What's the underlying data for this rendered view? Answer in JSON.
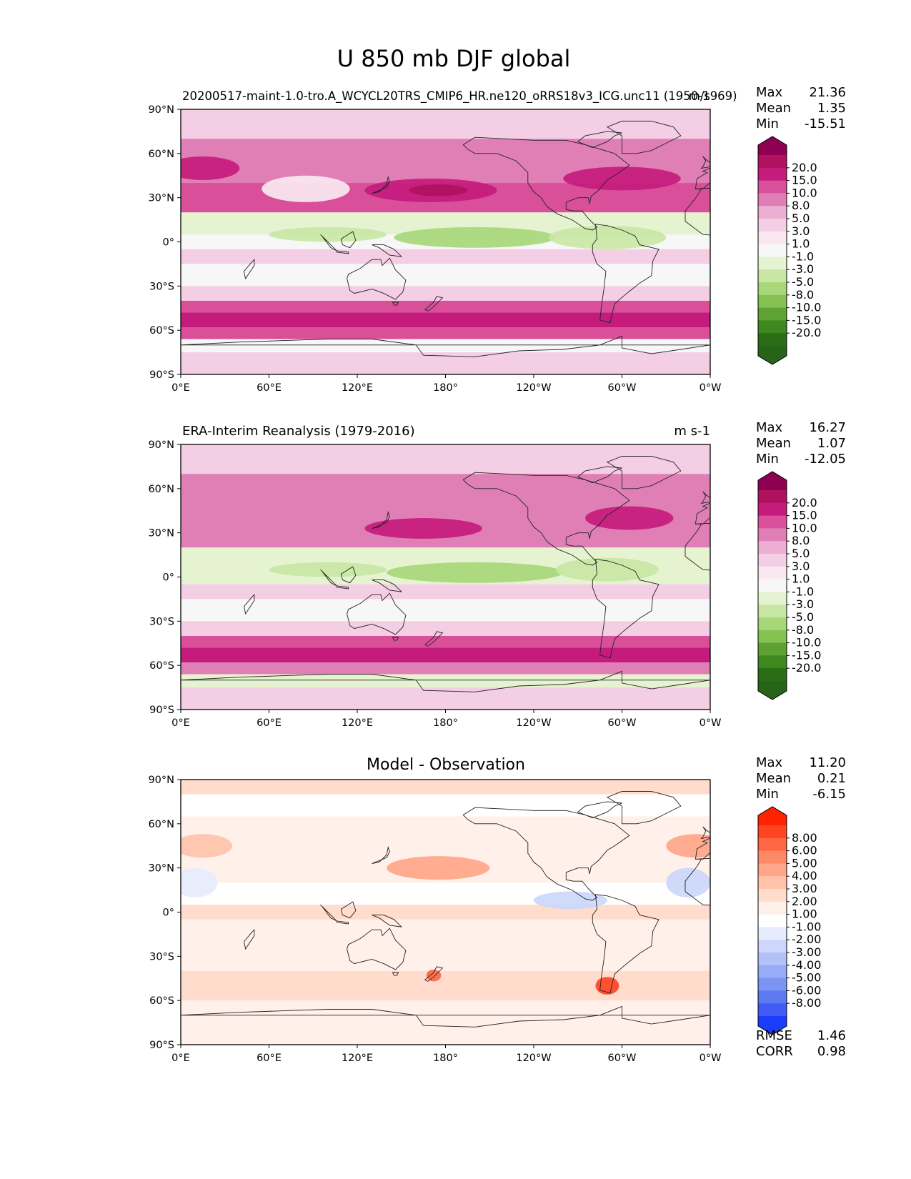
{
  "figure": {
    "title": "U 850 mb DJF global"
  },
  "axes": {
    "lat_ticks": [
      "90°N",
      "60°N",
      "30°N",
      "0°",
      "30°S",
      "60°S",
      "90°S"
    ],
    "lon_ticks": [
      "0°E",
      "60°E",
      "120°E",
      "180°",
      "120°W",
      "60°W",
      "0°W"
    ]
  },
  "panels": [
    {
      "id": "model",
      "title_left": "20200517-maint-1.0-tro.A_WCYCL20TRS_CMIP6_HR.ne120_oRRS18v3_ICG.unc11 (1950-1969)",
      "title_right": "m/s",
      "title_center": "",
      "stats": {
        "max_label": "Max",
        "max": "21.36",
        "mean_label": "Mean",
        "mean": "1.35",
        "min_label": "Min",
        "min": "-15.51"
      },
      "colorbar": {
        "labels": [
          "20.0",
          "15.0",
          "10.0",
          "8.0",
          "5.0",
          "3.0",
          "1.0",
          "-1.0",
          "-3.0",
          "-5.0",
          "-8.0",
          "-10.0",
          "-15.0",
          "-20.0"
        ],
        "colors": [
          "#8e0152",
          "#b0125e",
          "#c51b7d",
          "#d94f9a",
          "#e07fb6",
          "#ecaed2",
          "#f4cee4",
          "#fae8f1",
          "#f7f7f7",
          "#e6f3d1",
          "#c9e7a4",
          "#a8d77a",
          "#85c252",
          "#5fa234",
          "#3f8820",
          "#2a6d16",
          "#276419"
        ]
      },
      "bands": [
        {
          "lat_n": 90,
          "lat_s": 70,
          "value": 1
        },
        {
          "lat_n": 70,
          "lat_s": 40,
          "value": 6
        },
        {
          "lat_n": 40,
          "lat_s": 20,
          "value": 8
        },
        {
          "lat_n": 20,
          "lat_s": 5,
          "value": -5
        },
        {
          "lat_n": 5,
          "lat_s": -5,
          "value": -3
        },
        {
          "lat_n": -5,
          "lat_s": -15,
          "value": 1
        },
        {
          "lat_n": -15,
          "lat_s": -30,
          "value": -3
        },
        {
          "lat_n": -30,
          "lat_s": -40,
          "value": 1
        },
        {
          "lat_n": -40,
          "lat_s": -48,
          "value": 9
        },
        {
          "lat_n": -48,
          "lat_s": -58,
          "value": 14
        },
        {
          "lat_n": -58,
          "lat_s": -66,
          "value": 9
        },
        {
          "lat_n": -66,
          "lat_s": -75,
          "value": -3
        },
        {
          "lat_n": -75,
          "lat_s": -90,
          "value": 1
        }
      ],
      "features": [
        {
          "lon": 170,
          "lat": 35,
          "rlon": 45,
          "rlat": 8,
          "value": 12
        },
        {
          "lon": 175,
          "lat": 35,
          "rlon": 20,
          "rlat": 4,
          "value": 18
        },
        {
          "lon": 300,
          "lat": 43,
          "rlon": 40,
          "rlat": 8,
          "value": 12
        },
        {
          "lon": 15,
          "lat": 50,
          "rlon": 25,
          "rlat": 8,
          "value": 11
        },
        {
          "lon": 200,
          "lat": 3,
          "rlon": 55,
          "rlat": 7,
          "value": -9
        },
        {
          "lon": 100,
          "lat": 5,
          "rlon": 40,
          "rlat": 5,
          "value": -7
        },
        {
          "lon": 85,
          "lat": 36,
          "rlon": 30,
          "rlat": 9,
          "value": 0
        },
        {
          "lon": 290,
          "lat": 3,
          "rlon": 40,
          "rlat": 8,
          "value": -6
        }
      ]
    },
    {
      "id": "obs",
      "title_left": "ERA-Interim Reanalysis (1979-2016)",
      "title_right": "m s-1",
      "title_center": "",
      "stats": {
        "max_label": "Max",
        "max": "16.27",
        "mean_label": "Mean",
        "mean": "1.07",
        "min_label": "Min",
        "min": "-12.05"
      },
      "colorbar": {
        "labels": [
          "20.0",
          "15.0",
          "10.0",
          "8.0",
          "5.0",
          "3.0",
          "1.0",
          "-1.0",
          "-3.0",
          "-5.0",
          "-8.0",
          "-10.0",
          "-15.0",
          "-20.0"
        ],
        "colors": [
          "#8e0152",
          "#b0125e",
          "#c51b7d",
          "#d94f9a",
          "#e07fb6",
          "#ecaed2",
          "#f4cee4",
          "#fae8f1",
          "#f7f7f7",
          "#e6f3d1",
          "#c9e7a4",
          "#a8d77a",
          "#85c252",
          "#5fa234",
          "#3f8820",
          "#2a6d16",
          "#276419"
        ]
      },
      "bands": [
        {
          "lat_n": 90,
          "lat_s": 70,
          "value": 2
        },
        {
          "lat_n": 70,
          "lat_s": 40,
          "value": 6
        },
        {
          "lat_n": 40,
          "lat_s": 20,
          "value": 6
        },
        {
          "lat_n": 20,
          "lat_s": 5,
          "value": -5
        },
        {
          "lat_n": 5,
          "lat_s": -5,
          "value": -4
        },
        {
          "lat_n": -5,
          "lat_s": -15,
          "value": 1
        },
        {
          "lat_n": -15,
          "lat_s": -30,
          "value": -3
        },
        {
          "lat_n": -30,
          "lat_s": -40,
          "value": 2
        },
        {
          "lat_n": -40,
          "lat_s": -48,
          "value": 9
        },
        {
          "lat_n": -48,
          "lat_s": -58,
          "value": 13
        },
        {
          "lat_n": -58,
          "lat_s": -66,
          "value": 7
        },
        {
          "lat_n": -66,
          "lat_s": -75,
          "value": -4
        },
        {
          "lat_n": -75,
          "lat_s": -90,
          "value": 1
        }
      ],
      "features": [
        {
          "lon": 165,
          "lat": 33,
          "rlon": 40,
          "rlat": 7,
          "value": 11
        },
        {
          "lon": 305,
          "lat": 40,
          "rlon": 30,
          "rlat": 8,
          "value": 11
        },
        {
          "lon": 200,
          "lat": 3,
          "rlon": 60,
          "rlat": 7,
          "value": -9
        },
        {
          "lon": 100,
          "lat": 5,
          "rlon": 40,
          "rlat": 5,
          "value": -6
        },
        {
          "lon": 290,
          "lat": 5,
          "rlon": 35,
          "rlat": 8,
          "value": -6
        }
      ]
    },
    {
      "id": "diff",
      "title_left": "",
      "title_right": "",
      "title_center": "Model - Observation",
      "stats": {
        "max_label": "Max",
        "max": "11.20",
        "mean_label": "Mean",
        "mean": "0.21",
        "min_label": "Min",
        "min": "-6.15"
      },
      "extra_stats": {
        "rmse_label": "RMSE",
        "rmse": "1.46",
        "corr_label": "CORR",
        "corr": "0.98"
      },
      "colorbar": {
        "labels": [
          "8.00",
          "6.00",
          "5.00",
          "4.00",
          "3.00",
          "2.00",
          "1.00",
          "-1.00",
          "-2.00",
          "-3.00",
          "-4.00",
          "-5.00",
          "-6.00",
          "-8.00"
        ],
        "colors": [
          "#ff2200",
          "#ff4422",
          "#ff6644",
          "#ff8866",
          "#ffa688",
          "#ffc2aa",
          "#ffdccc",
          "#fff0ea",
          "#ffffff",
          "#e6ecfd",
          "#ccd7fb",
          "#b2c2f9",
          "#97abf6",
          "#7c94f2",
          "#5e7af0",
          "#3f5df5",
          "#1a3dfa"
        ]
      },
      "bands": [
        {
          "lat_n": 90,
          "lat_s": 80,
          "value": 1.5
        },
        {
          "lat_n": 80,
          "lat_s": 65,
          "value": -1.5
        },
        {
          "lat_n": 65,
          "lat_s": 45,
          "value": 0
        },
        {
          "lat_n": 45,
          "lat_s": 20,
          "value": 0
        },
        {
          "lat_n": 20,
          "lat_s": 5,
          "value": -1.5
        },
        {
          "lat_n": 5,
          "lat_s": -5,
          "value": 1.5
        },
        {
          "lat_n": -5,
          "lat_s": -25,
          "value": 0
        },
        {
          "lat_n": -25,
          "lat_s": -40,
          "value": 0
        },
        {
          "lat_n": -40,
          "lat_s": -60,
          "value": 1.5
        },
        {
          "lat_n": -60,
          "lat_s": -90,
          "value": 0
        }
      ],
      "features": [
        {
          "lon": 175,
          "lat": 30,
          "rlon": 35,
          "rlat": 8,
          "value": 3.5
        },
        {
          "lon": 350,
          "lat": 45,
          "rlon": 20,
          "rlat": 8,
          "value": 3.5
        },
        {
          "lon": 15,
          "lat": 45,
          "rlon": 20,
          "rlat": 8,
          "value": 2.5
        },
        {
          "lon": 265,
          "lat": 8,
          "rlon": 25,
          "rlat": 6,
          "value": -3.5
        },
        {
          "lon": 345,
          "lat": 20,
          "rlon": 15,
          "rlat": 10,
          "value": -3.5
        },
        {
          "lon": 10,
          "lat": 20,
          "rlon": 15,
          "rlat": 10,
          "value": -2.5
        },
        {
          "lon": 290,
          "lat": -50,
          "rlon": 8,
          "rlat": 6,
          "value": 7
        },
        {
          "lon": 172,
          "lat": -43,
          "rlon": 5,
          "rlat": 4,
          "value": 5.5
        }
      ]
    }
  ]
}
